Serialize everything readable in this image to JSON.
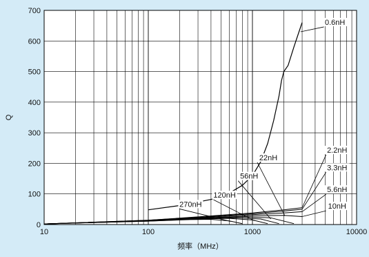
{
  "chart_data": {
    "type": "line",
    "title": "",
    "xlabel": "频率（MHz）",
    "ylabel": "Q",
    "x_scale": "log",
    "xlim": [
      10,
      10000
    ],
    "ylim": [
      0,
      700
    ],
    "grid": true,
    "x_ticks": [
      {
        "value": 10,
        "label": "10"
      },
      {
        "value": 100,
        "label": "100"
      },
      {
        "value": 1000,
        "label": "1000"
      },
      {
        "value": 10000,
        "label": "10000"
      }
    ],
    "y_ticks": [
      {
        "value": 0,
        "label": "0"
      },
      {
        "value": 100,
        "label": "100"
      },
      {
        "value": 200,
        "label": "200"
      },
      {
        "value": 300,
        "label": "300"
      },
      {
        "value": 400,
        "label": "400"
      },
      {
        "value": 500,
        "label": "500"
      },
      {
        "value": 600,
        "label": "600"
      },
      {
        "value": 700,
        "label": "700"
      }
    ],
    "series": [
      {
        "name": "0.6nH",
        "x": [
          100,
          200,
          400,
          600,
          800,
          1000,
          1200,
          1400,
          1600,
          1800,
          1900,
          2000,
          2200,
          2500,
          2800,
          3000
        ],
        "y": [
          48,
          62,
          82,
          103,
          128,
          160,
          205,
          265,
          340,
          420,
          470,
          500,
          520,
          580,
          630,
          660
        ]
      },
      {
        "name": "2.2nH",
        "x": [
          10,
          100,
          300,
          1000,
          2000,
          3000
        ],
        "y": [
          2,
          14,
          25,
          38,
          48,
          55
        ]
      },
      {
        "name": "3.3nH",
        "x": [
          10,
          100,
          300,
          1000,
          2000,
          3000
        ],
        "y": [
          2,
          14,
          24,
          35,
          44,
          50
        ]
      },
      {
        "name": "5.6nH",
        "x": [
          10,
          100,
          300,
          1000,
          2000,
          3000
        ],
        "y": [
          2,
          13,
          22,
          32,
          38,
          42
        ]
      },
      {
        "name": "10nH",
        "x": [
          10,
          100,
          300,
          1000,
          2000,
          3000
        ],
        "y": [
          2,
          13,
          21,
          28,
          30,
          26
        ]
      },
      {
        "name": "22nH",
        "x": [
          10,
          100,
          300,
          800,
          1500,
          2500
        ],
        "y": [
          2,
          12,
          20,
          25,
          22,
          3
        ]
      },
      {
        "name": "56nH",
        "x": [
          10,
          100,
          300,
          700,
          1200,
          1800
        ],
        "y": [
          2,
          12,
          18,
          22,
          18,
          3
        ]
      },
      {
        "name": "120nH",
        "x": [
          10,
          100,
          300,
          600,
          1000,
          1400
        ],
        "y": [
          2,
          11,
          18,
          20,
          15,
          3
        ]
      },
      {
        "name": "270nH",
        "x": [
          10,
          100,
          250,
          400,
          600,
          800
        ],
        "y": [
          2,
          11,
          16,
          17,
          12,
          3
        ]
      }
    ],
    "annotations": [
      {
        "text": "0.6nH",
        "label_at": [
          6200,
          655
        ],
        "point": [
          2900,
          630
        ],
        "anchor": "middle"
      },
      {
        "text": "22nH",
        "label_at": [
          1420,
          212
        ],
        "point": [
          2050,
          28
        ],
        "anchor": "middle"
      },
      {
        "text": "56nH",
        "label_at": [
          930,
          152
        ],
        "point": [
          1500,
          18
        ],
        "anchor": "middle"
      },
      {
        "text": "120nH",
        "label_at": [
          540,
          90
        ],
        "point": [
          1050,
          12
        ],
        "anchor": "middle"
      },
      {
        "text": "270nH",
        "label_at": [
          255,
          60
        ],
        "point": [
          620,
          10
        ],
        "anchor": "middle"
      },
      {
        "text": "2.2nH",
        "label_at": [
          6500,
          237
        ],
        "point": [
          3000,
          55
        ],
        "anchor": "middle"
      },
      {
        "text": "3.3nH",
        "label_at": [
          6500,
          180
        ],
        "point": [
          3000,
          50
        ],
        "anchor": "middle"
      },
      {
        "text": "5.6nH",
        "label_at": [
          6500,
          108
        ],
        "point": [
          3000,
          42
        ],
        "anchor": "middle"
      },
      {
        "text": "10nH",
        "label_at": [
          6500,
          54
        ],
        "point": [
          3000,
          26
        ],
        "anchor": "middle"
      }
    ]
  }
}
